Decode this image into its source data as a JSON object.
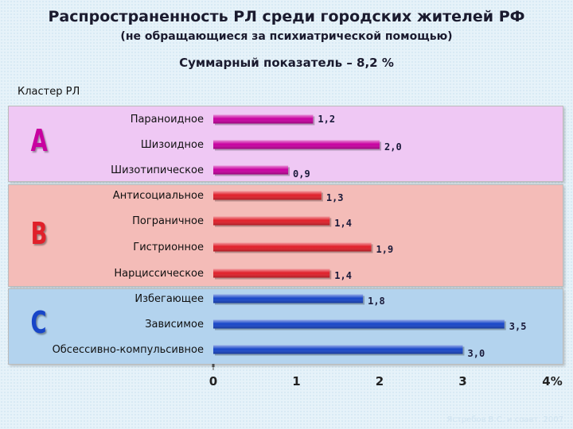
{
  "header": {
    "title": "Распространенность РЛ среди городских жителей РФ",
    "subtitle": "(не обращающиеся за психиатрической помощью)",
    "summary": "Суммарный показатель – 8,2 %"
  },
  "axis_caption": "Кластер РЛ",
  "footer": "Ястребов В.С. и соавт. 2007",
  "clusters": [
    {
      "letter": "A",
      "color": "#c800a0"
    },
    {
      "letter": "B",
      "color": "#e0202a"
    },
    {
      "letter": "C",
      "color": "#1846c8"
    }
  ],
  "chart_data": {
    "type": "bar",
    "orientation": "horizontal",
    "categories": [
      "Параноидное",
      "Шизоидное",
      "Шизотипическое",
      "Антисоциальное",
      "Пограничное",
      "Гистрионное",
      "Нарциссическое",
      "Избегающее",
      "Зависимое",
      "Обсессивно-компульсивное"
    ],
    "values": [
      1.2,
      2.0,
      0.9,
      1.3,
      1.4,
      1.9,
      1.4,
      1.8,
      3.5,
      3.0
    ],
    "value_labels": [
      "1,2",
      "2,0",
      "0,9",
      "1,3",
      "1,4",
      "1,9",
      "1,4",
      "1,8",
      "3,5",
      "3,0"
    ],
    "groups": [
      "A",
      "A",
      "A",
      "B",
      "B",
      "B",
      "B",
      "C",
      "C",
      "C"
    ],
    "group_colors": {
      "A": "#c800a0",
      "B": "#e0202a",
      "C": "#1846c8"
    },
    "xlim": [
      0,
      4
    ],
    "xticks": [
      "0",
      "1",
      "2",
      "3",
      "4%"
    ],
    "ylabel": "Кластер РЛ",
    "grid": false
  }
}
